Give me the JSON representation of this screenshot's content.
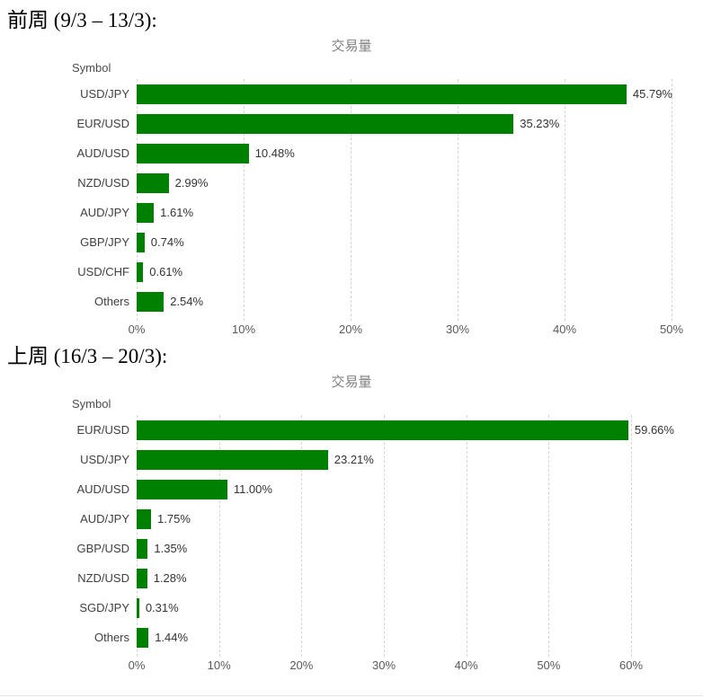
{
  "page": {
    "section1_heading": "前周 (9/3 – 13/3):",
    "section2_heading": "上周 (16/3 – 20/3):"
  },
  "chart_data": [
    {
      "type": "bar",
      "orientation": "horizontal",
      "title": "交易量",
      "column_header": "Symbol",
      "categories": [
        "USD/JPY",
        "EUR/USD",
        "AUD/USD",
        "NZD/USD",
        "AUD/JPY",
        "GBP/JPY",
        "USD/CHF",
        "Others"
      ],
      "values": [
        45.79,
        35.23,
        10.48,
        2.99,
        1.61,
        0.74,
        0.61,
        2.54
      ],
      "value_labels": [
        "45.79%",
        "35.23%",
        "10.48%",
        "2.99%",
        "1.61%",
        "0.74%",
        "0.61%",
        "2.54%"
      ],
      "xlim": [
        0,
        50
      ],
      "ticks": [
        0,
        10,
        20,
        30,
        40,
        50
      ],
      "tick_labels": [
        "0%",
        "10%",
        "20%",
        "30%",
        "40%",
        "50%"
      ],
      "bar_color": "#008000",
      "grid": "vertical-dashed",
      "legend": "none"
    },
    {
      "type": "bar",
      "orientation": "horizontal",
      "title": "交易量",
      "column_header": "Symbol",
      "categories": [
        "EUR/USD",
        "USD/JPY",
        "AUD/USD",
        "AUD/JPY",
        "GBP/USD",
        "NZD/USD",
        "SGD/JPY",
        "Others"
      ],
      "values": [
        59.66,
        23.21,
        11.0,
        1.75,
        1.35,
        1.28,
        0.31,
        1.44
      ],
      "value_labels": [
        "59.66%",
        "23.21%",
        "11.00%",
        "1.75%",
        "1.35%",
        "1.28%",
        "0.31%",
        "1.44%"
      ],
      "xlim": [
        0,
        60
      ],
      "ticks": [
        0,
        10,
        20,
        30,
        40,
        50,
        60
      ],
      "tick_labels": [
        "0%",
        "10%",
        "20%",
        "30%",
        "40%",
        "50%",
        "60%"
      ],
      "bar_color": "#008000",
      "grid": "vertical-dashed",
      "legend": "none"
    }
  ]
}
